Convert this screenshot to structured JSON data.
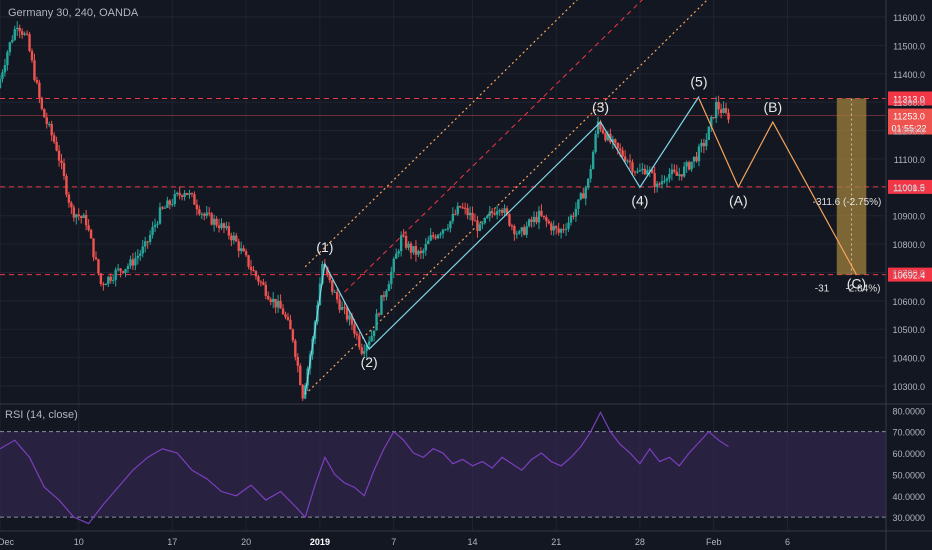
{
  "header": {
    "symbol_label": "Germany 30, 240, OANDA"
  },
  "rsi_panel": {
    "label": "RSI (14, close)"
  },
  "colors": {
    "background": "#131722",
    "grid": "#1f2430",
    "axis_text": "#b2b5be",
    "candle_up": "#26a69a",
    "candle_down": "#ef5350",
    "level_line": "#f23645",
    "channel_line": "#f7a35c",
    "wave_line": "#7fd7e8",
    "projection_line": "#f7a35c",
    "rsi_line": "#7b3fbe",
    "rsi_band": "#3a2a5a",
    "target_box": "#a0823c"
  },
  "chart_data": [
    {
      "type": "candlestick",
      "instrument": "Germany 30",
      "timeframe": "240",
      "source": "OANDA",
      "x_tick_labels": [
        "Dec",
        "10",
        "17",
        "20",
        "2019",
        "7",
        "14",
        "21",
        "28",
        "Feb",
        "6"
      ],
      "y_tick_labels": [
        "10300.0",
        "10400.0",
        "10500.0",
        "10600.0",
        "10700.0",
        "10800.0",
        "10900.0",
        "11000.0",
        "11100.0",
        "11200.0",
        "11300.0",
        "11400.0",
        "11500.0",
        "11600.0"
      ],
      "ylim": [
        10240,
        11660
      ],
      "price_series": [
        {
          "t": 0,
          "v": 11350
        },
        {
          "t": 2,
          "v": 11480
        },
        {
          "t": 4,
          "v": 11580
        },
        {
          "t": 6,
          "v": 11520
        },
        {
          "t": 9,
          "v": 11270
        },
        {
          "t": 12,
          "v": 11140
        },
        {
          "t": 15,
          "v": 10920
        },
        {
          "t": 18,
          "v": 10880
        },
        {
          "t": 21,
          "v": 10660
        },
        {
          "t": 24,
          "v": 10700
        },
        {
          "t": 27,
          "v": 10730
        },
        {
          "t": 30,
          "v": 10790
        },
        {
          "t": 33,
          "v": 10910
        },
        {
          "t": 36,
          "v": 10960
        },
        {
          "t": 38,
          "v": 10990
        },
        {
          "t": 40,
          "v": 10950
        },
        {
          "t": 42,
          "v": 10900
        },
        {
          "t": 45,
          "v": 10870
        },
        {
          "t": 48,
          "v": 10820
        },
        {
          "t": 50,
          "v": 10760
        },
        {
          "t": 52,
          "v": 10700
        },
        {
          "t": 54,
          "v": 10650
        },
        {
          "t": 56,
          "v": 10600
        },
        {
          "t": 58,
          "v": 10560
        },
        {
          "t": 60,
          "v": 10470
        },
        {
          "t": 62,
          "v": 10270
        },
        {
          "t": 64,
          "v": 10460
        },
        {
          "t": 66,
          "v": 10730
        },
        {
          "t": 68,
          "v": 10640
        },
        {
          "t": 70,
          "v": 10570
        },
        {
          "t": 72,
          "v": 10520
        },
        {
          "t": 74,
          "v": 10430
        },
        {
          "t": 76,
          "v": 10480
        },
        {
          "t": 78,
          "v": 10600
        },
        {
          "t": 80,
          "v": 10700
        },
        {
          "t": 82,
          "v": 10820
        },
        {
          "t": 84,
          "v": 10780
        },
        {
          "t": 86,
          "v": 10760
        },
        {
          "t": 88,
          "v": 10820
        },
        {
          "t": 90,
          "v": 10850
        },
        {
          "t": 92,
          "v": 10880
        },
        {
          "t": 94,
          "v": 10930
        },
        {
          "t": 96,
          "v": 10900
        },
        {
          "t": 98,
          "v": 10850
        },
        {
          "t": 100,
          "v": 10900
        },
        {
          "t": 102,
          "v": 10940
        },
        {
          "t": 104,
          "v": 10880
        },
        {
          "t": 106,
          "v": 10830
        },
        {
          "t": 108,
          "v": 10870
        },
        {
          "t": 110,
          "v": 10900
        },
        {
          "t": 112,
          "v": 10870
        },
        {
          "t": 114,
          "v": 10840
        },
        {
          "t": 116,
          "v": 10880
        },
        {
          "t": 118,
          "v": 10940
        },
        {
          "t": 120,
          "v": 11020
        },
        {
          "t": 122,
          "v": 11230
        },
        {
          "t": 124,
          "v": 11170
        },
        {
          "t": 126,
          "v": 11130
        },
        {
          "t": 128,
          "v": 11100
        },
        {
          "t": 130,
          "v": 11050
        },
        {
          "t": 132,
          "v": 11070
        },
        {
          "t": 134,
          "v": 11000
        },
        {
          "t": 136,
          "v": 11050
        },
        {
          "t": 138,
          "v": 11040
        },
        {
          "t": 140,
          "v": 11070
        },
        {
          "t": 142,
          "v": 11110
        },
        {
          "t": 144,
          "v": 11170
        },
        {
          "t": 146,
          "v": 11290
        },
        {
          "t": 148,
          "v": 11253
        }
      ],
      "horizontal_levels": [
        {
          "value": 11313.0,
          "label": "11313.0"
        },
        {
          "value": 11001.5,
          "label": "11001.5"
        },
        {
          "value": 10692.4,
          "label": "10692.4"
        }
      ],
      "current_price": {
        "value": 11253.0,
        "label": "11253.0",
        "countdown": "01:55:22"
      },
      "wave_labels": [
        {
          "label": "(1)",
          "t": 66,
          "v": 10730
        },
        {
          "label": "(2)",
          "t": 75,
          "v": 10430
        },
        {
          "label": "(3)",
          "t": 122,
          "v": 11230
        },
        {
          "label": "(4)",
          "t": 130,
          "v": 11000
        },
        {
          "label": "(5)",
          "t": 142,
          "v": 11320
        },
        {
          "label": "(A)",
          "t": 150,
          "v": 11000
        },
        {
          "label": "(B)",
          "t": 157,
          "v": 11230
        },
        {
          "label": "(C)",
          "t": 174,
          "v": 10692
        }
      ],
      "projection_path": [
        {
          "t": 142,
          "v": 11313
        },
        {
          "t": 150,
          "v": 11001
        },
        {
          "t": 157,
          "v": 11230
        },
        {
          "t": 174,
          "v": 10692
        }
      ],
      "measurements": [
        {
          "label": "-311.6 (-2.75%)",
          "value": 11001.5
        },
        {
          "label": "-31",
          "value": 10692.4
        },
        {
          "label": "-2.84%)",
          "value": 10692.4
        }
      ],
      "rsi": {
        "label": "RSI (14, close)",
        "y_tick_labels": [
          "30.0000",
          "40.0000",
          "50.0000",
          "60.0000",
          "70.0000",
          "80.0000"
        ],
        "ylim": [
          24,
          82
        ],
        "band": [
          30,
          70
        ],
        "series": [
          {
            "t": 0,
            "v": 62
          },
          {
            "t": 3,
            "v": 66
          },
          {
            "t": 6,
            "v": 58
          },
          {
            "t": 9,
            "v": 44
          },
          {
            "t": 12,
            "v": 38
          },
          {
            "t": 15,
            "v": 30
          },
          {
            "t": 18,
            "v": 27
          },
          {
            "t": 21,
            "v": 36
          },
          {
            "t": 24,
            "v": 44
          },
          {
            "t": 27,
            "v": 52
          },
          {
            "t": 30,
            "v": 58
          },
          {
            "t": 33,
            "v": 62
          },
          {
            "t": 36,
            "v": 60
          },
          {
            "t": 39,
            "v": 52
          },
          {
            "t": 42,
            "v": 48
          },
          {
            "t": 45,
            "v": 42
          },
          {
            "t": 48,
            "v": 40
          },
          {
            "t": 51,
            "v": 45
          },
          {
            "t": 54,
            "v": 38
          },
          {
            "t": 57,
            "v": 42
          },
          {
            "t": 60,
            "v": 35
          },
          {
            "t": 62,
            "v": 30
          },
          {
            "t": 64,
            "v": 45
          },
          {
            "t": 66,
            "v": 58
          },
          {
            "t": 68,
            "v": 50
          },
          {
            "t": 70,
            "v": 46
          },
          {
            "t": 72,
            "v": 44
          },
          {
            "t": 74,
            "v": 40
          },
          {
            "t": 76,
            "v": 52
          },
          {
            "t": 78,
            "v": 62
          },
          {
            "t": 80,
            "v": 70
          },
          {
            "t": 82,
            "v": 66
          },
          {
            "t": 84,
            "v": 60
          },
          {
            "t": 86,
            "v": 58
          },
          {
            "t": 88,
            "v": 62
          },
          {
            "t": 90,
            "v": 60
          },
          {
            "t": 92,
            "v": 55
          },
          {
            "t": 94,
            "v": 57
          },
          {
            "t": 96,
            "v": 54
          },
          {
            "t": 98,
            "v": 56
          },
          {
            "t": 100,
            "v": 53
          },
          {
            "t": 102,
            "v": 58
          },
          {
            "t": 104,
            "v": 55
          },
          {
            "t": 106,
            "v": 52
          },
          {
            "t": 108,
            "v": 57
          },
          {
            "t": 110,
            "v": 60
          },
          {
            "t": 112,
            "v": 56
          },
          {
            "t": 114,
            "v": 54
          },
          {
            "t": 116,
            "v": 58
          },
          {
            "t": 118,
            "v": 63
          },
          {
            "t": 120,
            "v": 70
          },
          {
            "t": 122,
            "v": 79
          },
          {
            "t": 124,
            "v": 70
          },
          {
            "t": 126,
            "v": 64
          },
          {
            "t": 128,
            "v": 60
          },
          {
            "t": 130,
            "v": 55
          },
          {
            "t": 132,
            "v": 62
          },
          {
            "t": 134,
            "v": 56
          },
          {
            "t": 136,
            "v": 58
          },
          {
            "t": 138,
            "v": 54
          },
          {
            "t": 140,
            "v": 60
          },
          {
            "t": 142,
            "v": 65
          },
          {
            "t": 144,
            "v": 70
          },
          {
            "t": 146,
            "v": 66
          },
          {
            "t": 148,
            "v": 63
          }
        ]
      }
    }
  ]
}
